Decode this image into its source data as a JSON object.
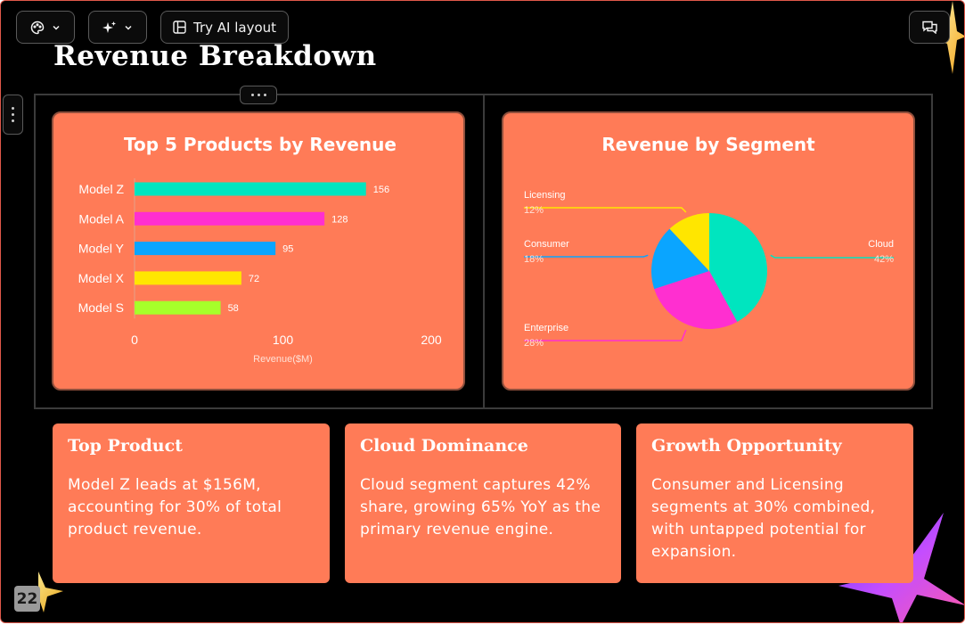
{
  "toolbar": {
    "layout_label": "Try AI layout"
  },
  "slide": {
    "title": "Revenue Breakdown",
    "page_number": "22"
  },
  "charts": {
    "bar_title": "Top 5 Products by Revenue",
    "pie_title": "Revenue by Segment"
  },
  "chart_data": [
    {
      "type": "bar",
      "orientation": "horizontal",
      "title": "Top 5 Products by Revenue",
      "categories": [
        "Model Z",
        "Model A",
        "Model Y",
        "Model X",
        "Model S"
      ],
      "values": [
        156,
        128,
        95,
        72,
        58
      ],
      "bar_colors": [
        "#00e5bf",
        "#ff2fd0",
        "#0aa5ff",
        "#ffe600",
        "#a6ff2a"
      ],
      "xlabel": "Revenue($M)",
      "xticks": [
        0,
        100,
        200
      ],
      "xlim": [
        0,
        200
      ],
      "grid": false,
      "data_labels": true
    },
    {
      "type": "pie",
      "title": "Revenue by Segment",
      "slices": [
        {
          "label": "Cloud",
          "value": 42,
          "value_label": "42%",
          "color": "#00e5bf"
        },
        {
          "label": "Enterprise",
          "value": 28,
          "value_label": "28%",
          "color": "#ff2fd0"
        },
        {
          "label": "Consumer",
          "value": 18,
          "value_label": "18%",
          "color": "#0aa5ff"
        },
        {
          "label": "Licensing",
          "value": 12,
          "value_label": "12%",
          "color": "#ffe600"
        }
      ],
      "legend": "outside-labels-with-leader-lines"
    }
  ],
  "cards": [
    {
      "title": "Top Product",
      "body": "Model Z leads at $156M, accounting for 30% of total product revenue."
    },
    {
      "title": "Cloud Dominance",
      "body": "Cloud segment captures 42% share, growing 65% YoY as the primary revenue engine."
    },
    {
      "title": "Growth Opportunity",
      "body": "Consumer and Licensing segments at 30% combined, with untapped potential for expansion."
    }
  ],
  "icons": {
    "theme": "palette-icon",
    "ai": "sparkle-icon",
    "layout": "layout-icon",
    "comments": "comments-icon",
    "dropdown": "chevron-down-icon"
  },
  "colors": {
    "background": "#000000",
    "card": "#ff7b57",
    "text": "#ffffff"
  }
}
